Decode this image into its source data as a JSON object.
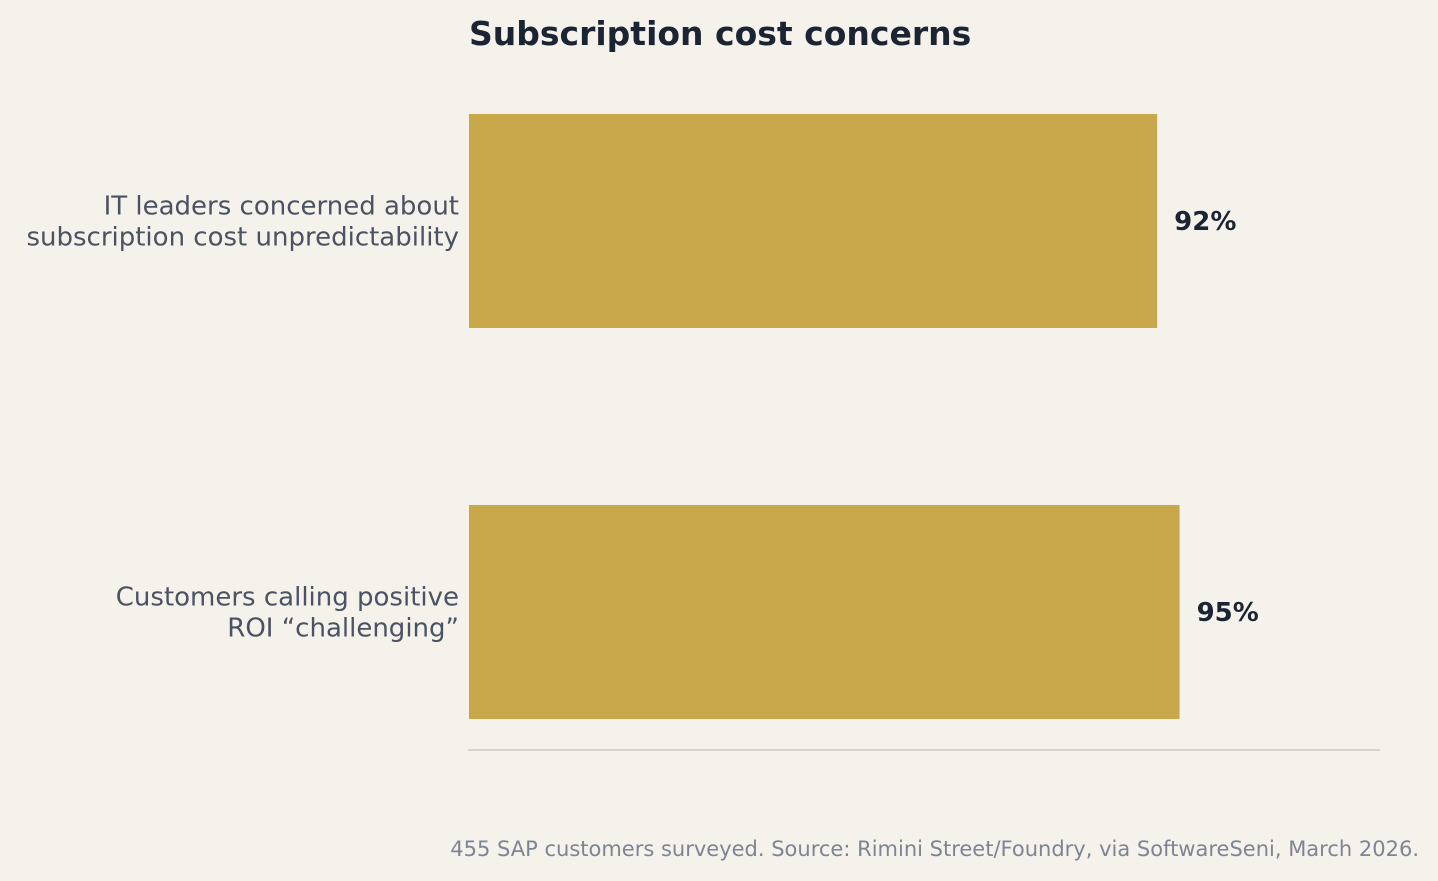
{
  "chart_data": {
    "type": "bar",
    "orientation": "horizontal",
    "title": "Subscription cost concerns",
    "categories": [
      [
        "IT leaders concerned about",
        "subscription cost unpredictability"
      ],
      [
        "Customers calling positive",
        "ROI “challenging”"
      ]
    ],
    "values": [
      92,
      95
    ],
    "value_labels": [
      "92%",
      "95%"
    ],
    "xlim": [
      0,
      100
    ],
    "grid": false,
    "footnote": "455 SAP customers surveyed. Source: Rimini Street/Foundry, via SoftwareSeni, March 2026.",
    "colors": {
      "bar": "#c9a84c",
      "background": "#f5f1eb",
      "axis": "#d6d3ce"
    }
  }
}
